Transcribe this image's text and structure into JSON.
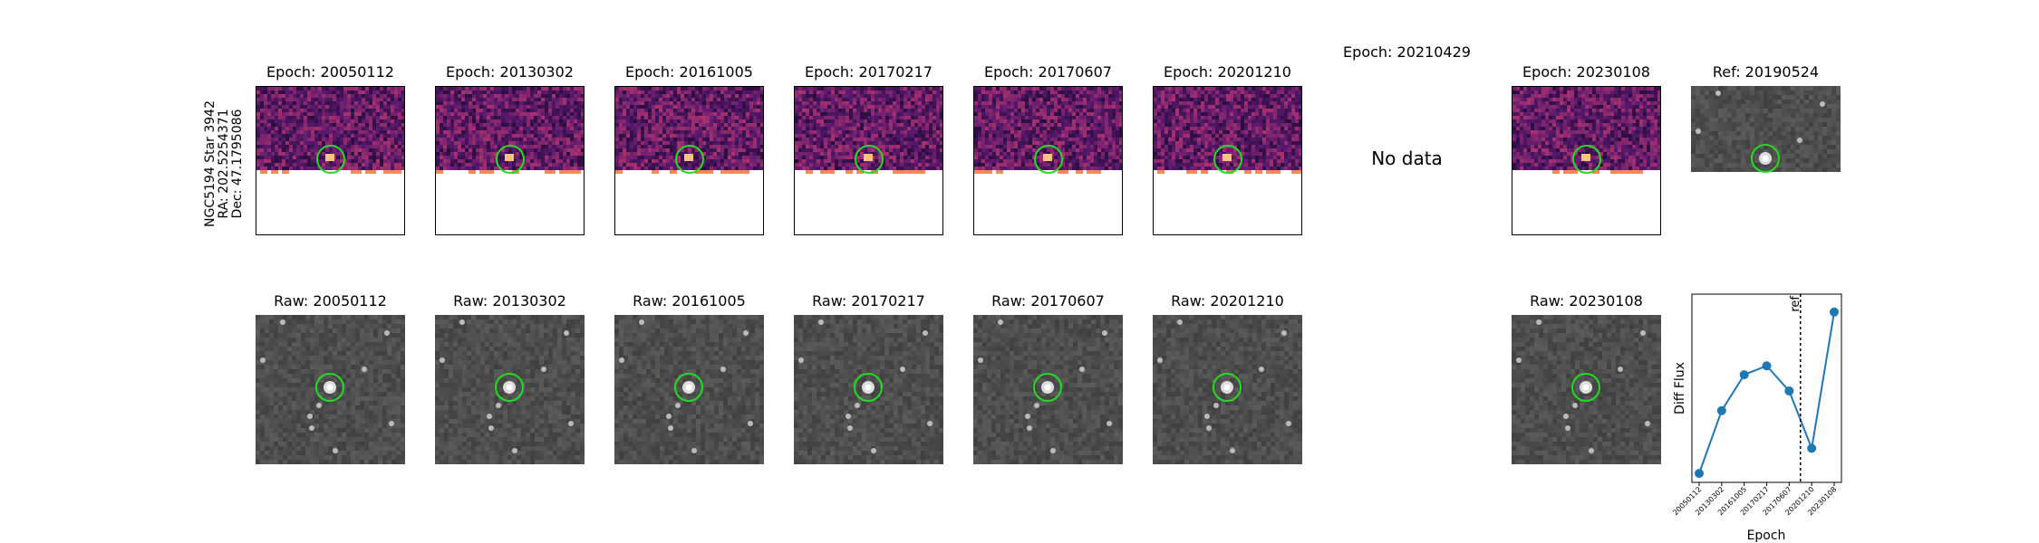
{
  "row_label": [
    "NGC5194 Star 3942",
    "RA: 202.5254371",
    "Dec: 47.1795086"
  ],
  "diff_panels": [
    {
      "title": "Epoch: 20050112",
      "has_data": true
    },
    {
      "title": "Epoch: 20130302",
      "has_data": true
    },
    {
      "title": "Epoch: 20161005",
      "has_data": true
    },
    {
      "title": "Epoch: 20170217",
      "has_data": true
    },
    {
      "title": "Epoch: 20170607",
      "has_data": true
    },
    {
      "title": "Epoch: 20201210",
      "has_data": true
    },
    {
      "title": "Epoch: 20210429",
      "has_data": false,
      "message": "No data"
    },
    {
      "title": "Epoch: 20230108",
      "has_data": true
    }
  ],
  "ref_panel": {
    "title": "Ref: 20190524"
  },
  "raw_panels": [
    {
      "title": "Raw: 20050112"
    },
    {
      "title": "Raw: 20130302"
    },
    {
      "title": "Raw: 20161005"
    },
    {
      "title": "Raw: 20170217"
    },
    {
      "title": "Raw: 20170607"
    },
    {
      "title": "Raw: 20201210"
    },
    {
      "title": "Raw: 20230108"
    }
  ],
  "colors": {
    "circle": "#22dd22",
    "series": "#1f77b4"
  },
  "chart_data": {
    "type": "line",
    "x": [
      "20050112",
      "20130302",
      "20161005",
      "20170217",
      "20170607",
      "20201210",
      "20230108"
    ],
    "series": [
      {
        "values": [
          0.0,
          0.35,
          0.55,
          0.6,
          0.46,
          0.14,
          0.9
        ]
      }
    ],
    "ylim": [
      -0.05,
      1.0
    ],
    "xlabel": "Epoch",
    "ylabel": "Diff Flux",
    "ref_line": {
      "label": "ref"
    },
    "grid": false
  }
}
